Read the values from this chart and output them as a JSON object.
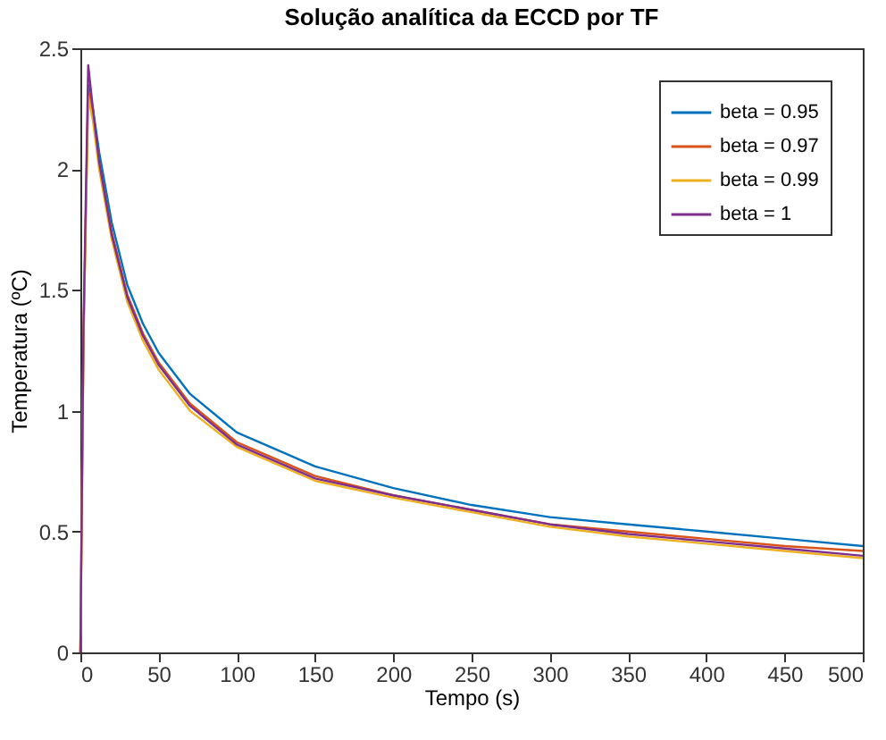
{
  "chart_data": {
    "type": "line",
    "title": "Solução analítica da ECCD por TF",
    "xlabel": "Tempo (s)",
    "ylabel": "Temperatura (ºC)",
    "x": [
      0,
      2,
      5,
      8,
      12,
      20,
      30,
      40,
      50,
      70,
      100,
      150,
      200,
      250,
      300,
      350,
      400,
      450,
      500
    ],
    "series": [
      {
        "name": "beta = 0.95",
        "color": "#0072bd",
        "values": [
          null,
          null,
          2.35,
          2.25,
          2.07,
          1.78,
          1.52,
          1.36,
          1.24,
          1.07,
          0.91,
          0.77,
          0.68,
          0.61,
          0.56,
          0.53,
          0.5,
          0.47,
          0.44
        ]
      },
      {
        "name": "beta = 0.97",
        "color": "#d95319",
        "values": [
          0,
          1.3,
          2.33,
          2.22,
          2.03,
          1.74,
          1.48,
          1.32,
          1.2,
          1.03,
          0.87,
          0.73,
          0.65,
          0.59,
          0.53,
          0.5,
          0.47,
          0.44,
          0.42
        ]
      },
      {
        "name": "beta = 0.99",
        "color": "#edb120",
        "values": [
          0,
          1.3,
          2.3,
          2.2,
          2.0,
          1.71,
          1.45,
          1.29,
          1.17,
          1.0,
          0.85,
          0.71,
          0.64,
          0.58,
          0.52,
          0.48,
          0.45,
          0.42,
          0.39
        ]
      },
      {
        "name": "beta = 1",
        "color": "#7e2f8e",
        "values": [
          0,
          1.35,
          2.43,
          2.25,
          2.03,
          1.73,
          1.47,
          1.31,
          1.19,
          1.02,
          0.86,
          0.72,
          0.65,
          0.59,
          0.53,
          0.49,
          0.46,
          0.43,
          0.4
        ]
      }
    ],
    "xlim": [
      0,
      500
    ],
    "xticks": [
      0,
      50,
      100,
      150,
      200,
      250,
      300,
      350,
      400,
      450,
      500
    ],
    "ylim": [
      0,
      2.5
    ],
    "yticks": [
      0,
      0.5,
      1,
      1.5,
      2,
      2.5
    ],
    "grid": false,
    "legend": "top right",
    "marker": "none",
    "line_style": "solid"
  }
}
